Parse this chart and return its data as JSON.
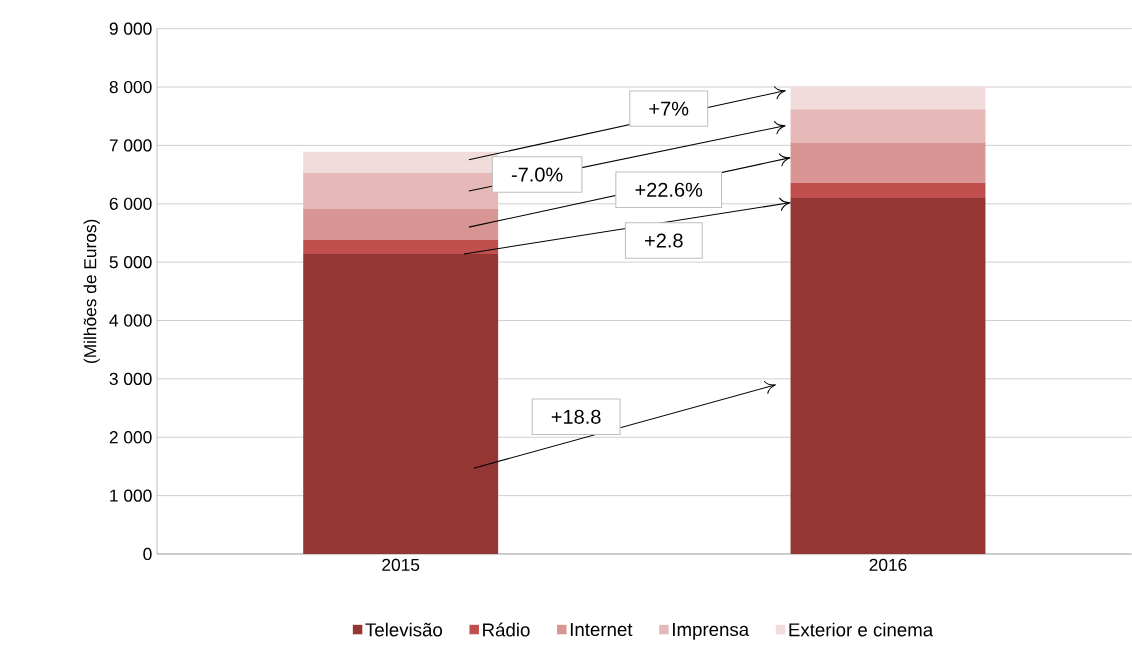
{
  "chart_data": {
    "type": "bar",
    "stacked": true,
    "ylabel": "(Milhões de Euros)",
    "categories": [
      "2015",
      "2016"
    ],
    "series": [
      {
        "name": "Televisão",
        "color": "#943634",
        "values": [
          5140,
          6100
        ]
      },
      {
        "name": "Rádio",
        "color": "#c0504d",
        "values": [
          240,
          260
        ]
      },
      {
        "name": "Internet",
        "color": "#d99594",
        "values": [
          530,
          690
        ]
      },
      {
        "name": "Imprensa",
        "color": "#e6b8b7",
        "values": [
          620,
          570
        ]
      },
      {
        "name": "Exterior e cinema",
        "color": "#f2dcdb",
        "values": [
          360,
          390
        ]
      }
    ],
    "ylim": [
      0,
      9000
    ],
    "yticks": [
      0,
      {
        "value": 1000,
        "label": "1 000"
      },
      {
        "value": 2000,
        "label": "2 000"
      },
      {
        "value": 3000,
        "label": "3 000"
      },
      {
        "value": 4000,
        "label": "4 000"
      },
      {
        "value": 5000,
        "label": "5 000"
      },
      {
        "value": 6000,
        "label": "6 000"
      },
      {
        "value": 7000,
        "label": "7 000"
      },
      {
        "value": 8000,
        "label": "8 000"
      },
      {
        "value": 9000,
        "label": "9 000"
      }
    ],
    "grid": "y",
    "legend": "bottom",
    "annotations": [
      "+7%",
      "-7.0%",
      "+22.6%",
      "+2.8",
      "+18.8"
    ]
  }
}
